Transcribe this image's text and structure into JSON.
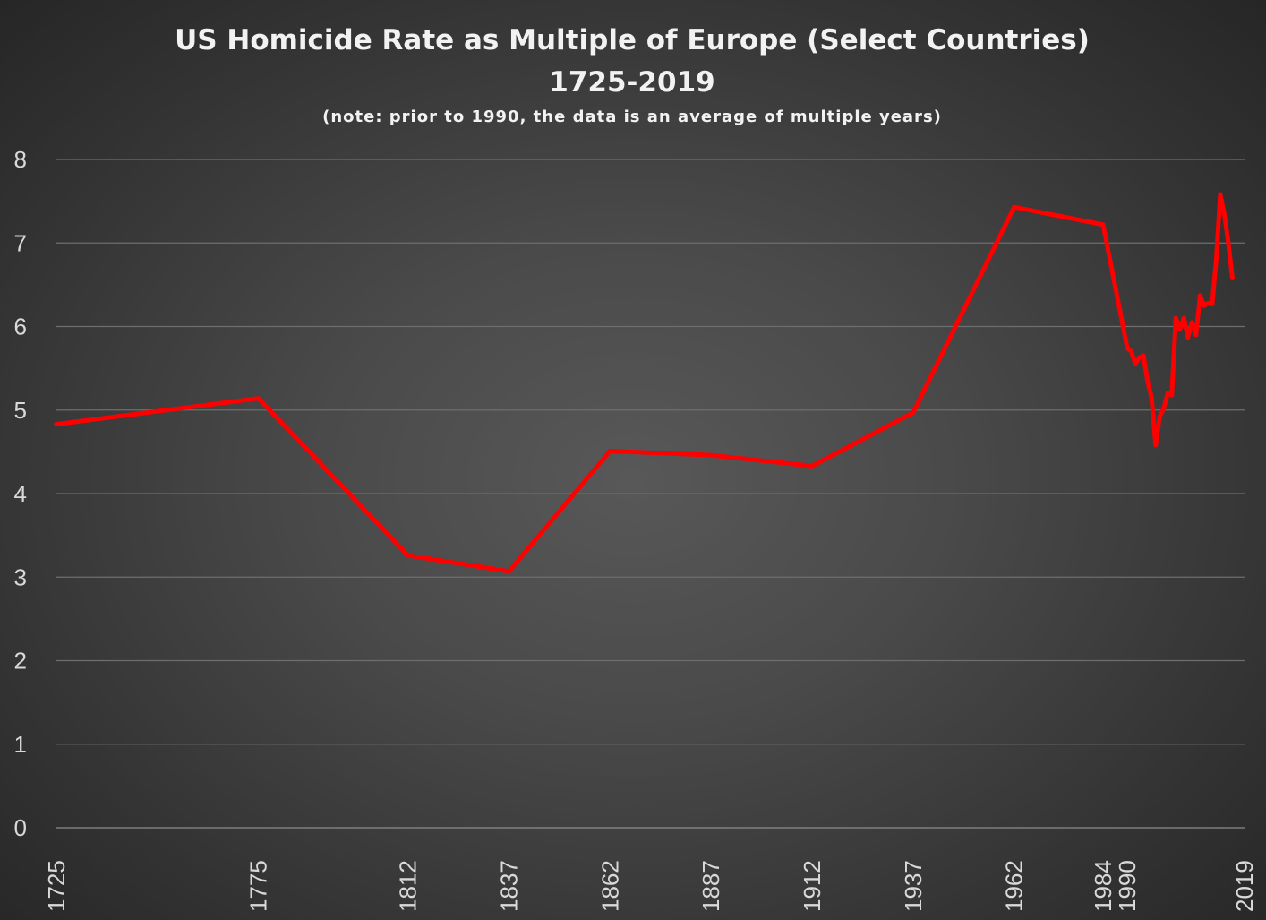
{
  "chart_data": {
    "type": "line",
    "title": "US Homicide Rate as Multiple of Europe (Select Countries)",
    "subtitle": "1725-2019",
    "note": "(note: prior to 1990, the data is an average of multiple years)",
    "xlabel": "",
    "ylabel": "",
    "ylim": [
      0,
      8
    ],
    "xlim": [
      1725,
      2019
    ],
    "y_ticks": [
      0,
      1,
      2,
      3,
      4,
      5,
      6,
      7,
      8
    ],
    "x_tick_labels": [
      "1725",
      "1775",
      "1812",
      "1837",
      "1862",
      "1887",
      "1912",
      "1937",
      "1962",
      "1984",
      "1990",
      "2019"
    ],
    "grid": true,
    "legend": "none",
    "series": [
      {
        "color": "#ff0000",
        "points": [
          [
            1725,
            4.83
          ],
          [
            1775,
            5.14
          ],
          [
            1812,
            3.26
          ],
          [
            1837,
            3.07
          ],
          [
            1862,
            4.51
          ],
          [
            1887,
            4.46
          ],
          [
            1912,
            4.33
          ],
          [
            1937,
            4.97
          ],
          [
            1962,
            7.43
          ],
          [
            1984,
            7.22
          ],
          [
            1990,
            5.74
          ],
          [
            1991,
            5.7
          ],
          [
            1992,
            5.55
          ],
          [
            1993,
            5.63
          ],
          [
            1994,
            5.65
          ],
          [
            1995,
            5.35
          ],
          [
            1996,
            5.15
          ],
          [
            1997,
            4.58
          ],
          [
            1998,
            4.92
          ],
          [
            1999,
            5.02
          ],
          [
            2000,
            5.2
          ],
          [
            2001,
            5.18
          ],
          [
            2002,
            6.1
          ],
          [
            2003,
            5.97
          ],
          [
            2004,
            6.1
          ],
          [
            2005,
            5.87
          ],
          [
            2006,
            6.05
          ],
          [
            2007,
            5.9
          ],
          [
            2008,
            6.37
          ],
          [
            2009,
            6.25
          ],
          [
            2010,
            6.28
          ],
          [
            2011,
            6.27
          ],
          [
            2012,
            6.8
          ],
          [
            2013,
            7.58
          ],
          [
            2014,
            7.35
          ],
          [
            2015,
            7.0
          ],
          [
            2016,
            6.58
          ]
        ]
      }
    ]
  }
}
